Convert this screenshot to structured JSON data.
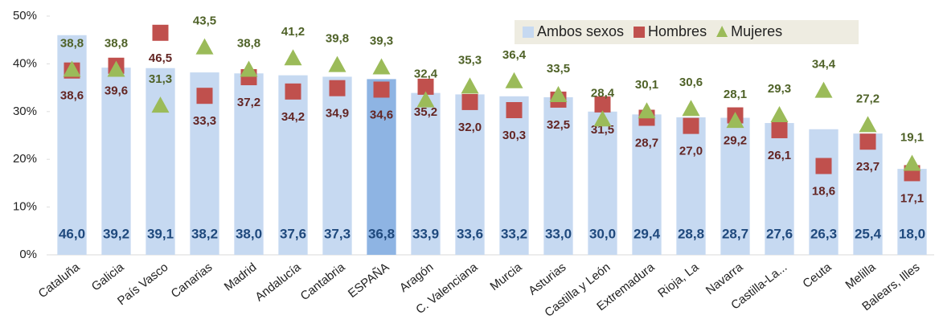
{
  "chart_data": {
    "type": "bar",
    "categories": [
      "Cataluña",
      "Galicia",
      "País Vasco",
      "Canarias",
      "Madrid",
      "Andalucía",
      "Cantabria",
      "ESPAÑA",
      "Aragón",
      "C. Valenciana",
      "Murcia",
      "Asturias",
      "Castilla y León",
      "Extremadura",
      "Rioja, La",
      "Navarra",
      "Castilla-La...",
      "Ceuta",
      "Melilla",
      "Balears, Illes"
    ],
    "series": [
      {
        "name": "Ambos sexos",
        "mark": "bar",
        "color": "#c6d9f1",
        "label_color": "#1f497d",
        "colors": [
          "#c6d9f1",
          "#c6d9f1",
          "#c6d9f1",
          "#c6d9f1",
          "#c6d9f1",
          "#c6d9f1",
          "#c6d9f1",
          "#8eb4e3",
          "#c6d9f1",
          "#c6d9f1",
          "#c6d9f1",
          "#c6d9f1",
          "#c6d9f1",
          "#c6d9f1",
          "#c6d9f1",
          "#c6d9f1",
          "#c6d9f1",
          "#c6d9f1",
          "#c6d9f1",
          "#c6d9f1"
        ],
        "values": [
          46.0,
          39.2,
          39.1,
          38.2,
          38.0,
          37.6,
          37.3,
          36.8,
          33.9,
          33.6,
          33.2,
          33.0,
          30.0,
          29.4,
          28.8,
          28.7,
          27.6,
          26.3,
          25.4,
          18.0
        ],
        "value_labels": [
          "46,0",
          "39,2",
          "39,1",
          "38,2",
          "38,0",
          "37,6",
          "37,3",
          "36,8",
          "33,9",
          "33,6",
          "33,2",
          "33,0",
          "30,0",
          "29,4",
          "28,8",
          "28,7",
          "27,6",
          "26,3",
          "25,4",
          "18,0"
        ]
      },
      {
        "name": "Hombres",
        "mark": "square",
        "color": "#c0504d",
        "label_color": "#632523",
        "values": [
          38.6,
          39.6,
          46.5,
          33.3,
          37.2,
          34.2,
          34.9,
          34.6,
          35.2,
          32.0,
          30.3,
          32.5,
          31.5,
          28.7,
          27.0,
          29.2,
          26.1,
          18.6,
          23.7,
          17.1
        ],
        "value_labels": [
          "38,6",
          "39,6",
          "46,5",
          "33,3",
          "37,2",
          "34,2",
          "34,9",
          "34,6",
          "35,2",
          "32,0",
          "30,3",
          "32,5",
          "31,5",
          "28,7",
          "27,0",
          "29,2",
          "26,1",
          "18,6",
          "23,7",
          "17,1"
        ]
      },
      {
        "name": "Mujeres",
        "mark": "triangle",
        "color": "#9bbb59",
        "label_color": "#4f6228",
        "values": [
          38.8,
          38.8,
          31.3,
          43.5,
          38.8,
          41.2,
          39.8,
          39.3,
          32.4,
          35.3,
          36.4,
          33.5,
          28.4,
          30.1,
          30.6,
          28.1,
          29.3,
          34.4,
          27.2,
          19.1
        ],
        "value_labels": [
          "38,8",
          "38,8",
          "31,3",
          "43,5",
          "38,8",
          "41,2",
          "39,8",
          "39,3",
          "32,4",
          "35,3",
          "36,4",
          "33,5",
          "28,4",
          "30,1",
          "30,6",
          "28,1",
          "29,3",
          "34,4",
          "27,2",
          "19,1"
        ]
      }
    ],
    "ylim": [
      0,
      50
    ],
    "yticks": [
      {
        "value": 0,
        "label": "0%"
      },
      {
        "value": 10,
        "label": "10%"
      },
      {
        "value": 20,
        "label": "20%"
      },
      {
        "value": 30,
        "label": "30%"
      },
      {
        "value": 40,
        "label": "40%"
      },
      {
        "value": 50,
        "label": "50%"
      }
    ],
    "legend": "upper right"
  }
}
